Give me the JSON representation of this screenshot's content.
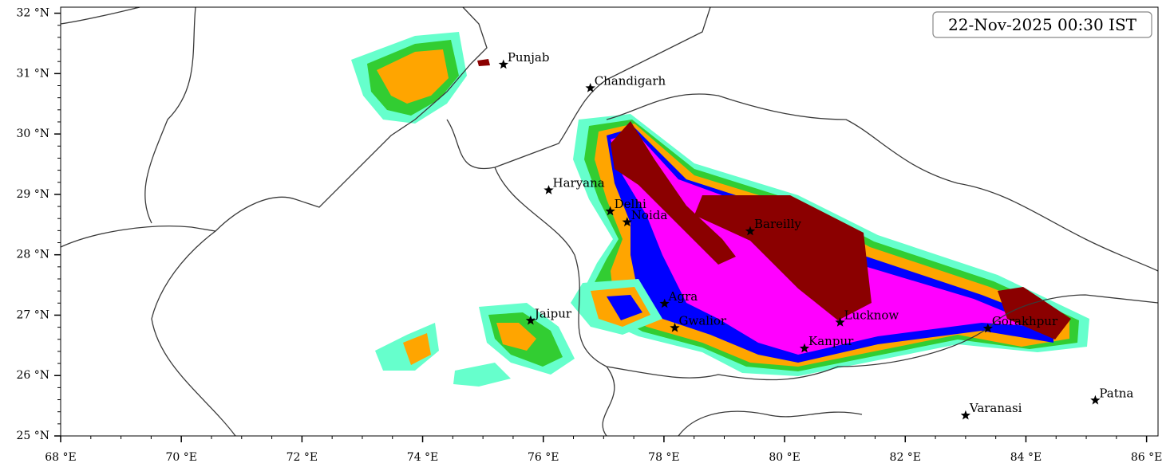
{
  "chart_data": {
    "type": "map",
    "title": "22-Nov-2025 00:30 IST",
    "xlim": [
      68,
      86.19
    ],
    "ylim": [
      25,
      32.1
    ],
    "xticks": [
      {
        "value": 68,
        "label": "68 °E"
      },
      {
        "value": 70,
        "label": "70 °E"
      },
      {
        "value": 72,
        "label": "72 °E"
      },
      {
        "value": 74,
        "label": "74 °E"
      },
      {
        "value": 76,
        "label": "76 °E"
      },
      {
        "value": 78,
        "label": "78 °E"
      },
      {
        "value": 80,
        "label": "80 °E"
      },
      {
        "value": 82,
        "label": "82 °E"
      },
      {
        "value": 84,
        "label": "84 °E"
      },
      {
        "value": 86,
        "label": "86 °E"
      }
    ],
    "yticks": [
      {
        "value": 25,
        "label": "25 °N"
      },
      {
        "value": 26,
        "label": "26 °N"
      },
      {
        "value": 27,
        "label": "27 °N"
      },
      {
        "value": 28,
        "label": "28 °N"
      },
      {
        "value": 29,
        "label": "29 °N"
      },
      {
        "value": 30,
        "label": "30 °N"
      },
      {
        "value": 31,
        "label": "31 °N"
      },
      {
        "value": 32,
        "label": "32 °N"
      }
    ],
    "cities": {
      "names": [
        "Punjab",
        "Chandigarh",
        "Haryana",
        "Delhi",
        "Noida",
        "Bareilly",
        "Agra",
        "Jaipur",
        "Gwalior",
        "Lucknow",
        "Kanpur",
        "Gorakhpur",
        "Varanasi",
        "Patna"
      ],
      "lon": [
        75.34,
        76.78,
        76.09,
        77.11,
        77.39,
        79.43,
        78.01,
        75.79,
        78.18,
        80.92,
        80.33,
        83.37,
        83.0,
        85.15
      ],
      "lat": [
        31.15,
        30.76,
        29.07,
        28.72,
        28.54,
        28.39,
        27.19,
        26.91,
        26.79,
        26.88,
        26.45,
        26.78,
        25.34,
        25.59
      ]
    }
  }
}
